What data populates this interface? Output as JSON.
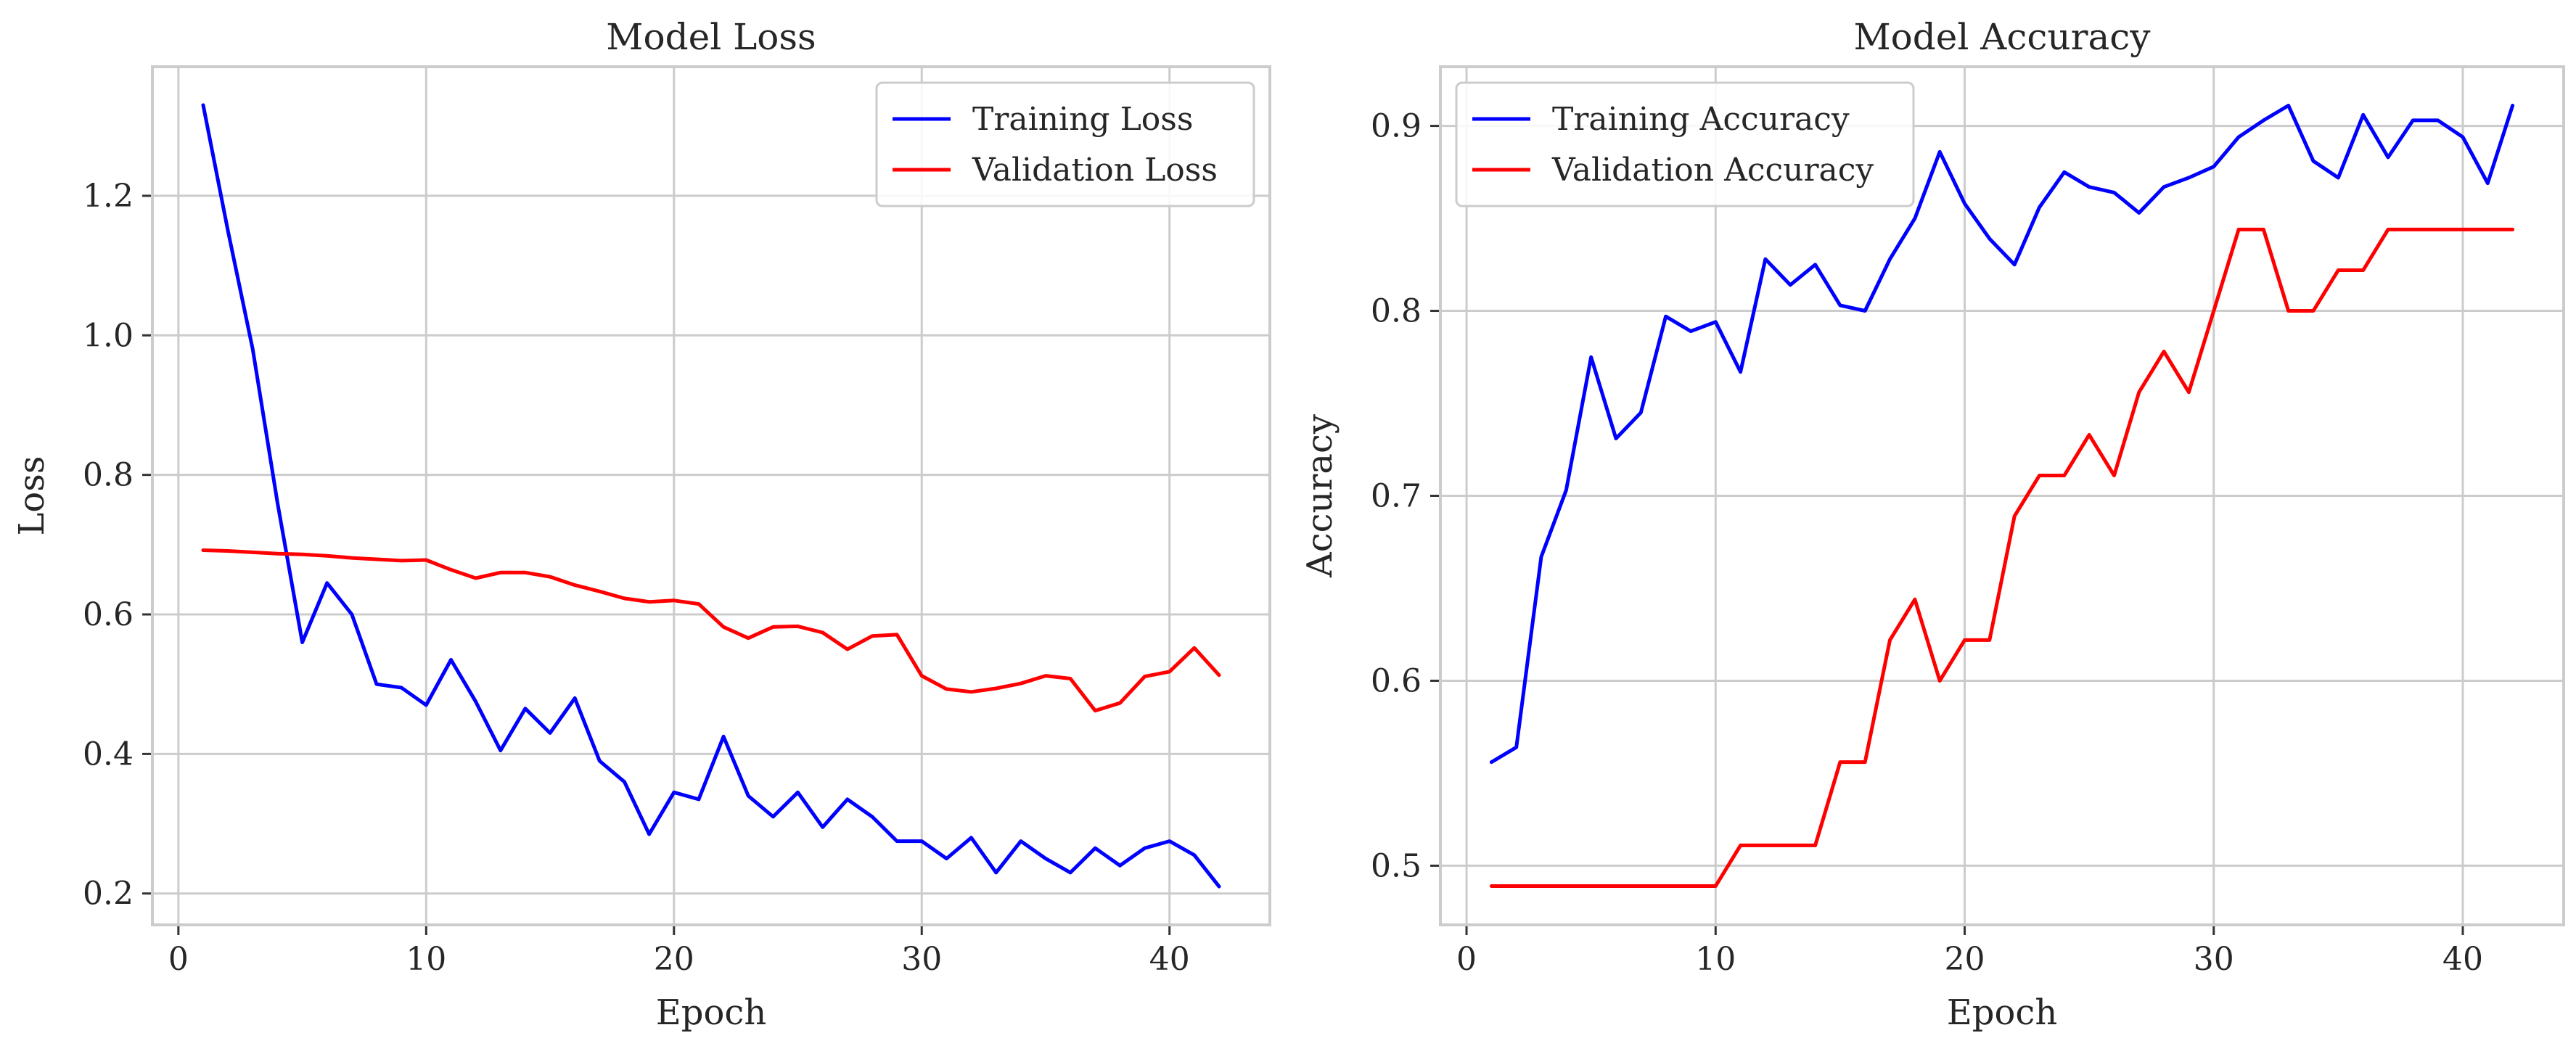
{
  "chart_data": [
    {
      "type": "line",
      "title": "Model Loss",
      "xlabel": "Epoch",
      "ylabel": "Loss",
      "xlim": [
        -1.05,
        44.05
      ],
      "ylim": [
        0.155,
        1.385
      ],
      "xticks": [
        0,
        10,
        20,
        30,
        40
      ],
      "yticks": [
        0.2,
        0.4,
        0.6,
        0.8,
        1.0,
        1.2
      ],
      "ytick_format": 1,
      "grid": true,
      "legend": "top-right",
      "x": [
        1,
        2,
        3,
        4,
        5,
        6,
        7,
        8,
        9,
        10,
        11,
        12,
        13,
        14,
        15,
        16,
        17,
        18,
        19,
        20,
        21,
        22,
        23,
        24,
        25,
        26,
        27,
        28,
        29,
        30,
        31,
        32,
        33,
        34,
        35,
        36,
        37,
        38,
        39,
        40,
        41,
        42
      ],
      "series": [
        {
          "name": "Training Loss",
          "color": "#0000ff",
          "values": [
            1.33,
            1.15,
            0.98,
            0.76,
            0.56,
            0.645,
            0.6,
            0.5,
            0.495,
            0.47,
            0.535,
            0.475,
            0.405,
            0.465,
            0.43,
            0.48,
            0.39,
            0.36,
            0.285,
            0.345,
            0.335,
            0.425,
            0.34,
            0.31,
            0.345,
            0.295,
            0.335,
            0.31,
            0.275,
            0.275,
            0.25,
            0.28,
            0.23,
            0.275,
            0.25,
            0.23,
            0.265,
            0.24,
            0.265,
            0.275,
            0.255,
            0.21
          ]
        },
        {
          "name": "Validation Loss",
          "color": "#ff0000",
          "values": [
            0.692,
            0.691,
            0.689,
            0.687,
            0.686,
            0.684,
            0.681,
            0.679,
            0.677,
            0.678,
            0.664,
            0.652,
            0.66,
            0.66,
            0.654,
            0.642,
            0.633,
            0.623,
            0.618,
            0.62,
            0.615,
            0.582,
            0.566,
            0.582,
            0.583,
            0.574,
            0.55,
            0.569,
            0.571,
            0.512,
            0.493,
            0.489,
            0.494,
            0.501,
            0.512,
            0.508,
            0.462,
            0.473,
            0.511,
            0.518,
            0.552,
            0.513
          ]
        }
      ]
    },
    {
      "type": "line",
      "title": "Model Accuracy",
      "xlabel": "Epoch",
      "ylabel": "Accuracy",
      "xlim": [
        -1.05,
        44.05
      ],
      "ylim": [
        0.468,
        0.932
      ],
      "xticks": [
        0,
        10,
        20,
        30,
        40
      ],
      "yticks": [
        0.5,
        0.6,
        0.7,
        0.8,
        0.9
      ],
      "ytick_format": 1,
      "grid": true,
      "legend": "top-left",
      "x": [
        1,
        2,
        3,
        4,
        5,
        6,
        7,
        8,
        9,
        10,
        11,
        12,
        13,
        14,
        15,
        16,
        17,
        18,
        19,
        20,
        21,
        22,
        23,
        24,
        25,
        26,
        27,
        28,
        29,
        30,
        31,
        32,
        33,
        34,
        35,
        36,
        37,
        38,
        39,
        40,
        41,
        42
      ],
      "series": [
        {
          "name": "Training Accuracy",
          "color": "#0000ff",
          "values": [
            0.556,
            0.564,
            0.667,
            0.703,
            0.775,
            0.731,
            0.745,
            0.797,
            0.789,
            0.794,
            0.767,
            0.828,
            0.814,
            0.825,
            0.803,
            0.8,
            0.828,
            0.85,
            0.886,
            0.858,
            0.839,
            0.825,
            0.856,
            0.875,
            0.867,
            0.864,
            0.853,
            0.867,
            0.872,
            0.878,
            0.894,
            0.903,
            0.911,
            0.881,
            0.872,
            0.906,
            0.883,
            0.903,
            0.903,
            0.894,
            0.869,
            0.911
          ]
        },
        {
          "name": "Validation Accuracy",
          "color": "#ff0000",
          "values": [
            0.489,
            0.489,
            0.489,
            0.489,
            0.489,
            0.489,
            0.489,
            0.489,
            0.489,
            0.489,
            0.511,
            0.511,
            0.511,
            0.511,
            0.556,
            0.556,
            0.622,
            0.644,
            0.6,
            0.622,
            0.622,
            0.689,
            0.711,
            0.711,
            0.733,
            0.711,
            0.756,
            0.778,
            0.756,
            0.8,
            0.844,
            0.844,
            0.8,
            0.8,
            0.822,
            0.822,
            0.844,
            0.844,
            0.844,
            0.844,
            0.844,
            0.844
          ]
        }
      ]
    }
  ]
}
